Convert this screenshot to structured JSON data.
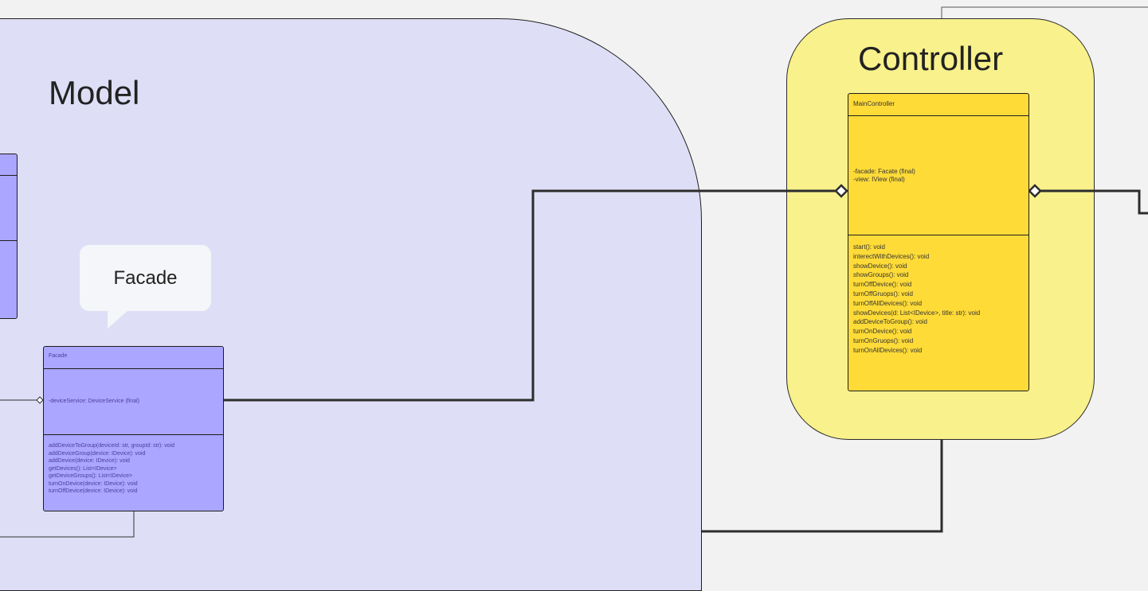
{
  "regions": {
    "model_title": "Model",
    "controller_title": "Controller"
  },
  "bubble": {
    "label": "Facade"
  },
  "facade_class": {
    "name": "Facade",
    "attributes": [
      "-deviceService: DeviceService (final)"
    ],
    "methods": [
      "addDeviceToGroup(deviceId: str, groupId: str): void",
      "addDeviceGroup(device: IDevice): void",
      "addDevice(device: IDevice): void",
      "getDevices(): List<IDevice>",
      "getDeviceGroups(): List<IDevice>",
      "turnOnDevice(device: IDevice): void",
      "turnOffDevice(device: IDevice): void"
    ]
  },
  "main_controller": {
    "name": "MainController",
    "attributes": [
      "-facade: Facate (final)",
      "-view: IView (final)"
    ],
    "methods": [
      "start(): void",
      "interectWithDevices(): void",
      "showDevice(): void",
      "showGroups(): void",
      "turnOffDevice(): void",
      "turnOffGruops(): void",
      "turnOffAllDevices(): void",
      "showDevices(d: List<IDevice>, title: str): void",
      "addDeviceToGroup(): void",
      "turnOnDevice(): void",
      "turnOnGruops(): void",
      "turnOnAllDevices(): void"
    ]
  },
  "colors": {
    "model_bg": "#dedff6",
    "controller_bg": "#f8f18c",
    "class_purple": "#aba6ff",
    "class_yellow": "#ffdb38"
  }
}
